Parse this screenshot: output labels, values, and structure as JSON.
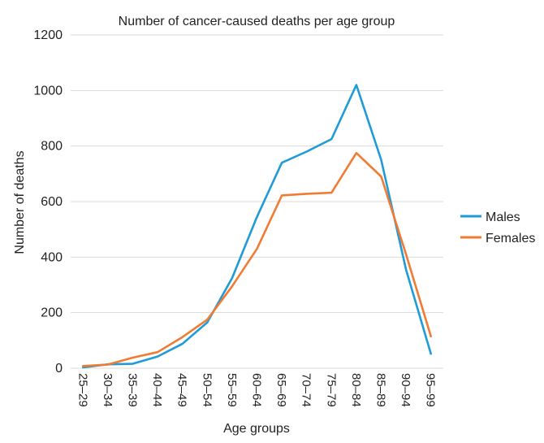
{
  "chart_data": {
    "type": "line",
    "title": "Number of cancer-caused deaths per age group",
    "xlabel": "Age groups",
    "ylabel": "Number of deaths",
    "ylim": [
      0,
      1200
    ],
    "yticks": [
      0,
      200,
      400,
      600,
      800,
      1000,
      1200
    ],
    "grid": true,
    "legend_position": "right",
    "categories": [
      "25–29",
      "30–34",
      "35–39",
      "40–44",
      "45–49",
      "50–54",
      "55–59",
      "60–64",
      "65–69",
      "70–74",
      "75–79",
      "80–84",
      "85–89",
      "90–94",
      "95–99"
    ],
    "series": [
      {
        "name": "Males",
        "color": "#1f9bd7",
        "values": [
          3,
          14,
          16,
          42,
          88,
          165,
          325,
          545,
          740,
          780,
          825,
          1020,
          750,
          355,
          52
        ]
      },
      {
        "name": "Females",
        "color": "#f07b34",
        "values": [
          8,
          13,
          38,
          58,
          112,
          175,
          295,
          430,
          622,
          628,
          632,
          775,
          690,
          410,
          115
        ]
      }
    ]
  }
}
